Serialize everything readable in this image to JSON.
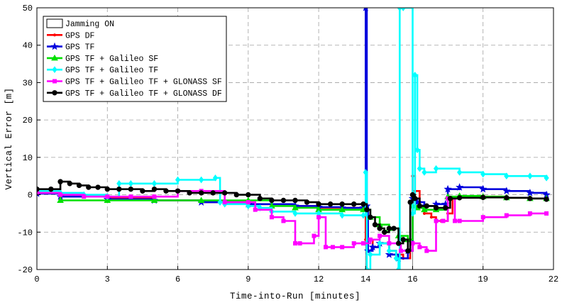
{
  "chart_data": {
    "type": "line",
    "title": "",
    "xlabel": "Time-into-Run [minutes]",
    "ylabel": "Vertical Error [m]",
    "xlim": [
      0,
      22
    ],
    "ylim": [
      -20,
      50
    ],
    "xticks": [
      0,
      3,
      6,
      9,
      12,
      14,
      16,
      19,
      22
    ],
    "yticks": [
      -20,
      -10,
      0,
      10,
      20,
      30,
      40,
      50
    ],
    "xtick_labels": [
      "0",
      "3",
      "6",
      "9",
      "12",
      "14",
      "16",
      "19",
      "22"
    ],
    "ytick_labels": [
      "-20",
      "-10",
      "0",
      "10",
      "20",
      "30",
      "40",
      "50"
    ],
    "grid": true,
    "legend_position": "top-left",
    "jamming": {
      "label": "Jamming ON",
      "x_start": 14.0,
      "x_end": 16.0
    },
    "series": [
      {
        "name": "GPS DF",
        "color": "#ff0000",
        "marker": "dot",
        "x": [
          0,
          1,
          3,
          5,
          7,
          9,
          11,
          12,
          13,
          13.9,
          14.0,
          14.3,
          14.6,
          15.0,
          15.3,
          15.6,
          15.9,
          16.0,
          16.1,
          16.3,
          16.5,
          16.8,
          17.0,
          17.2,
          17.5,
          17.7,
          18,
          19,
          20,
          21,
          21.7
        ],
        "y": [
          0.5,
          -0.5,
          -1.0,
          -1.5,
          -2.0,
          -2.5,
          -3.0,
          -3.5,
          -3.5,
          -3.5,
          -12,
          -14,
          -13,
          -15,
          -16,
          -17,
          -15,
          5,
          1,
          -3,
          -5,
          -6,
          -7,
          -7,
          -5,
          -1,
          -0.5,
          -0.5,
          -0.8,
          -1.0,
          -1.0
        ]
      },
      {
        "name": "GPS TF",
        "color": "#0000dd",
        "marker": "star",
        "x": [
          0,
          1,
          3,
          5,
          7,
          9,
          11,
          12,
          13,
          13.9,
          14.0,
          14.05,
          14.1,
          14.3,
          14.6,
          15.0,
          15.4,
          15.8,
          16.0,
          16.2,
          16.5,
          17.0,
          17.4,
          17.5,
          18,
          19,
          20,
          21,
          21.7
        ],
        "y": [
          0.3,
          -0.5,
          -1.2,
          -1.5,
          -2.0,
          -2.5,
          -3.0,
          -3.3,
          -3.5,
          -3.5,
          50,
          -3,
          -15,
          -14,
          -13,
          -16,
          -17,
          -15,
          -1,
          -2,
          -3,
          -2.5,
          -2.5,
          1.5,
          2,
          1.5,
          1,
          0.5,
          0
        ]
      },
      {
        "name": "GPS TF + Galileo SF",
        "color": "#00e000",
        "marker": "triangle",
        "x": [
          0,
          1,
          3,
          5,
          7,
          9,
          10,
          11,
          12,
          13,
          13.9,
          14.2,
          14.6,
          15.0,
          15.4,
          15.8,
          16.0,
          16.2,
          16.5,
          17.0,
          17.5,
          18,
          19,
          20,
          21,
          21.7
        ],
        "y": [
          1.0,
          -1.5,
          -1.5,
          -1.5,
          -1.5,
          -1.5,
          -3.0,
          -3.5,
          -4.0,
          -4.0,
          -4.0,
          -6,
          -8,
          -9,
          -11,
          -12,
          -3,
          -3.5,
          -4,
          -4,
          -0.5,
          -0.3,
          -0.5,
          -0.8,
          -1.0,
          -1.0
        ]
      },
      {
        "name": "GPS TF + Galileo TF",
        "color": "#00ffff",
        "marker": "diamond",
        "x": [
          0,
          1,
          2,
          3,
          3.5,
          4,
          5,
          6,
          7,
          7.6,
          7.8,
          8,
          9,
          9.5,
          10,
          11,
          12,
          13,
          13.9,
          14.0,
          14.05,
          14.2,
          14.6,
          15.0,
          15.3,
          15.4,
          15.45,
          15.6,
          16.0,
          16.1,
          16.2,
          16.3,
          16.5,
          17,
          18,
          19,
          20,
          21,
          21.7
        ],
        "y": [
          1.0,
          0.5,
          0,
          -0.5,
          3,
          3,
          3,
          4,
          4,
          4.5,
          -2,
          -2.5,
          -3,
          -3.5,
          -4.5,
          -5,
          -5,
          -5.5,
          -5.5,
          6,
          -20,
          -16,
          -13,
          -15,
          -17,
          -20,
          50,
          50,
          -5,
          32,
          12,
          7,
          6,
          7,
          6,
          5.5,
          5,
          5,
          4.5
        ]
      },
      {
        "name": "GPS TF + Galileo TF + GLONASS SF",
        "color": "#ff00ff",
        "marker": "square",
        "x": [
          0,
          1,
          2,
          3,
          4,
          5,
          6,
          7,
          8,
          9,
          9.3,
          10,
          10.5,
          11,
          11.2,
          11.8,
          12,
          12.3,
          12.6,
          13,
          13.5,
          13.9,
          14.2,
          14.6,
          15.0,
          15.5,
          16.0,
          16.3,
          16.6,
          17.0,
          17.3,
          17.5,
          17.8,
          18,
          19,
          20,
          21,
          21.7
        ],
        "y": [
          0.5,
          0,
          -0.5,
          -0.5,
          -0.5,
          -0.5,
          1,
          1,
          -2,
          -2,
          -4,
          -6,
          -7,
          -13,
          -13,
          -11,
          -6,
          -14,
          -14,
          -14,
          -13,
          -13,
          -12,
          -11,
          -13,
          -15,
          -13,
          -14,
          -15,
          -7,
          -7,
          -1,
          -7,
          -7,
          -6,
          -5.5,
          -5,
          -5
        ]
      },
      {
        "name": "GPS TF + Galileo TF + GLONASS DF",
        "color": "#000000",
        "marker": "circle",
        "x": [
          0,
          0.6,
          1.0,
          1.4,
          1.8,
          2.2,
          2.6,
          3.0,
          3.5,
          4.0,
          4.5,
          5.0,
          5.5,
          6.0,
          6.5,
          7.0,
          7.5,
          8.0,
          8.5,
          9.0,
          9.5,
          10.0,
          10.5,
          11.0,
          11.5,
          12.0,
          12.5,
          13.0,
          13.5,
          13.9,
          14.05,
          14.2,
          14.4,
          14.6,
          14.8,
          15.0,
          15.2,
          15.4,
          15.6,
          15.8,
          15.9,
          16.0,
          16.1,
          16.3,
          16.6,
          17.0,
          17.4,
          17.6,
          18,
          19,
          20,
          21,
          21.7
        ],
        "y": [
          1.5,
          1.5,
          3.5,
          3.0,
          2.5,
          2.0,
          2.0,
          1.5,
          1.5,
          1.5,
          1.0,
          1.5,
          1.0,
          1.0,
          0.5,
          0.5,
          0.5,
          0.5,
          0.0,
          0.0,
          -1.0,
          -1.5,
          -1.5,
          -1.5,
          -2.0,
          -2.5,
          -2.5,
          -2.5,
          -2.5,
          -2.5,
          -4.0,
          -6.0,
          -8.0,
          -9.0,
          -10.0,
          -9.0,
          -9.0,
          -13.0,
          -12.0,
          -15.0,
          -2.0,
          0.0,
          -1.0,
          -3.0,
          -3.0,
          -3.5,
          -3.5,
          -1.0,
          -0.8,
          -0.7,
          -0.8,
          -1.0,
          -1.2
        ]
      }
    ]
  }
}
